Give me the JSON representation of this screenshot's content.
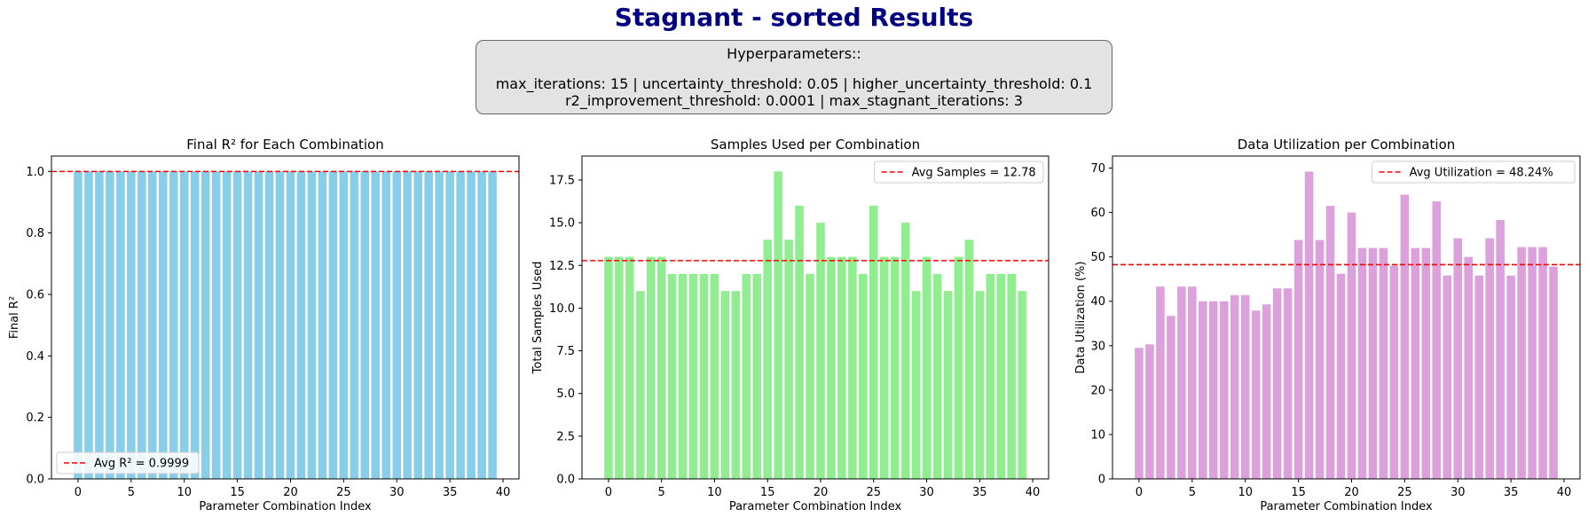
{
  "title": "Stagnant - sorted Results",
  "hyperparameters": {
    "heading": "Hyperparameters::",
    "line1": "max_iterations: 15 | uncertainty_threshold: 0.05 | higher_uncertainty_threshold: 0.1",
    "line2": "r2_improvement_threshold: 0.0001 | max_stagnant_iterations: 3"
  },
  "colors": {
    "title": "#000080",
    "avg_line": "#ff0000",
    "r2_bars": "#87ceeb",
    "samples_bars": "#90ee90",
    "util_bars": "#dda0dd"
  },
  "chart_data": [
    {
      "type": "bar",
      "title": "Final R² for Each Combination",
      "xlabel": "Parameter Combination Index",
      "ylabel": "Final R²",
      "x": [
        0,
        1,
        2,
        3,
        4,
        5,
        6,
        7,
        8,
        9,
        10,
        11,
        12,
        13,
        14,
        15,
        16,
        17,
        18,
        19,
        20,
        21,
        22,
        23,
        24,
        25,
        26,
        27,
        28,
        29,
        30,
        31,
        32,
        33,
        34,
        35,
        36,
        37,
        38,
        39
      ],
      "values": [
        0.9999,
        0.9999,
        0.9999,
        0.9999,
        0.9999,
        0.9999,
        0.9999,
        0.9999,
        0.9999,
        0.9999,
        0.9999,
        0.9999,
        0.9999,
        0.9999,
        0.9999,
        0.9999,
        0.9999,
        0.9999,
        0.9999,
        0.9999,
        0.9999,
        0.9999,
        0.9999,
        0.9999,
        0.9999,
        0.9999,
        0.9999,
        0.9999,
        0.9999,
        0.9999,
        0.9999,
        0.9999,
        0.9999,
        0.9999,
        0.9999,
        0.9999,
        0.9999,
        0.9999,
        0.9999,
        0.9999
      ],
      "xlim": [
        -2.5,
        41.5
      ],
      "ylim": [
        0,
        1.05
      ],
      "xticks": [
        0,
        5,
        10,
        15,
        20,
        25,
        30,
        35,
        40
      ],
      "xtick_labels": [
        "0",
        "5",
        "10",
        "15",
        "20",
        "25",
        "30",
        "35",
        "40"
      ],
      "yticks": [
        0,
        0.2,
        0.4,
        0.6,
        0.8,
        1.0
      ],
      "ytick_labels": [
        "0.0",
        "0.2",
        "0.4",
        "0.6",
        "0.8",
        "1.0"
      ],
      "avg_line": {
        "value": 0.9999,
        "label": "Avg R² = 0.9999",
        "style": "dashed"
      },
      "legend_position": "lower-left",
      "grid": false
    },
    {
      "type": "bar",
      "title": "Samples Used per Combination",
      "xlabel": "Parameter Combination Index",
      "ylabel": "Total Samples Used",
      "x": [
        0,
        1,
        2,
        3,
        4,
        5,
        6,
        7,
        8,
        9,
        10,
        11,
        12,
        13,
        14,
        15,
        16,
        17,
        18,
        19,
        20,
        21,
        22,
        23,
        24,
        25,
        26,
        27,
        28,
        29,
        30,
        31,
        32,
        33,
        34,
        35,
        36,
        37,
        38,
        39
      ],
      "values": [
        13,
        13,
        13,
        11,
        13,
        13,
        12,
        12,
        12,
        12,
        12,
        11,
        11,
        12,
        12,
        14,
        18,
        14,
        16,
        12,
        15,
        13,
        13,
        13,
        12,
        16,
        13,
        13,
        15,
        11,
        13,
        12,
        11,
        13,
        14,
        11,
        12,
        12,
        12,
        11
      ],
      "xlim": [
        -2.5,
        41.5
      ],
      "ylim": [
        0,
        18.9
      ],
      "xticks": [
        0,
        5,
        10,
        15,
        20,
        25,
        30,
        35,
        40
      ],
      "xtick_labels": [
        "0",
        "5",
        "10",
        "15",
        "20",
        "25",
        "30",
        "35",
        "40"
      ],
      "yticks": [
        0,
        2.5,
        5,
        7.5,
        10,
        12.5,
        15,
        17.5
      ],
      "ytick_labels": [
        "0.0",
        "2.5",
        "5.0",
        "7.5",
        "10.0",
        "12.5",
        "15.0",
        "17.5"
      ],
      "avg_line": {
        "value": 12.78,
        "label": "Avg Samples = 12.78",
        "style": "dashed"
      },
      "legend_position": "upper-right",
      "grid": false
    },
    {
      "type": "bar",
      "title": "Data Utilization per Combination",
      "xlabel": "Parameter Combination Index",
      "ylabel": "Data Utilization (%)",
      "x": [
        0,
        1,
        2,
        3,
        4,
        5,
        6,
        7,
        8,
        9,
        10,
        11,
        12,
        13,
        14,
        15,
        16,
        17,
        18,
        19,
        20,
        21,
        22,
        23,
        24,
        25,
        26,
        27,
        28,
        29,
        30,
        31,
        32,
        33,
        34,
        35,
        36,
        37,
        38,
        39
      ],
      "values": [
        29.5,
        30.3,
        43.3,
        36.7,
        43.3,
        43.3,
        40.0,
        40.0,
        40.0,
        41.4,
        41.4,
        37.9,
        39.3,
        42.9,
        42.9,
        53.8,
        69.2,
        53.8,
        61.5,
        46.2,
        60.0,
        52.0,
        52.0,
        52.0,
        48.0,
        64.0,
        52.0,
        52.0,
        62.5,
        45.8,
        54.2,
        50.0,
        45.8,
        54.2,
        58.3,
        45.8,
        52.2,
        52.2,
        52.2,
        47.8
      ],
      "xlim": [
        -2.5,
        41.5
      ],
      "ylim": [
        0,
        72.7
      ],
      "xticks": [
        0,
        5,
        10,
        15,
        20,
        25,
        30,
        35,
        40
      ],
      "xtick_labels": [
        "0",
        "5",
        "10",
        "15",
        "20",
        "25",
        "30",
        "35",
        "40"
      ],
      "yticks": [
        0,
        10,
        20,
        30,
        40,
        50,
        60,
        70
      ],
      "ytick_labels": [
        "0",
        "10",
        "20",
        "30",
        "40",
        "50",
        "60",
        "70"
      ],
      "avg_line": {
        "value": 48.24,
        "label": "Avg Utilization = 48.24%",
        "style": "dashed"
      },
      "legend_position": "upper-right",
      "grid": false
    }
  ]
}
